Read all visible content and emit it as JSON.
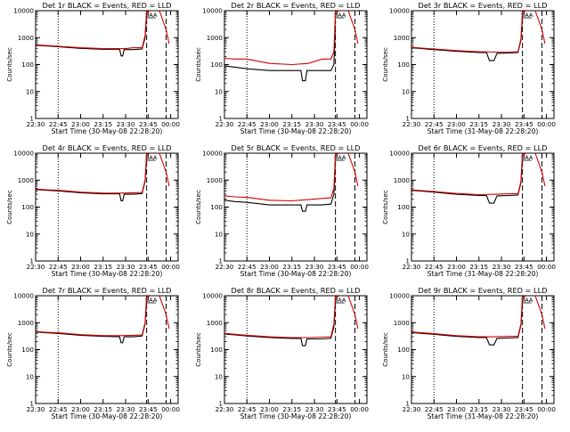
{
  "chart_data": [
    {
      "type": "line",
      "title": "Det 1r BLACK = Events, RED = LLD",
      "xlabel": "Start Time (30-May-08 22:28:20)",
      "ylabel": "Counts/sec",
      "yscale": "log",
      "ylim": [
        1,
        10000
      ],
      "x_ticks": [
        "22:30",
        "22:45",
        "23:00",
        "23:15",
        "23:30",
        "23:45",
        "00:00"
      ],
      "y_ticks": [
        "1",
        "10",
        "100",
        "1000",
        "10000"
      ],
      "markers": [
        {
          "label": "dotted",
          "x": "22:45"
        },
        {
          "label": "dashed",
          "x": "23:44"
        },
        {
          "label": "dashed",
          "x": "23:57"
        },
        {
          "label": "SAA",
          "x": "23:47"
        }
      ],
      "series": [
        {
          "name": "Events",
          "color": "#000000",
          "x": [
            "22:30",
            "22:37",
            "22:45",
            "23:00",
            "23:15",
            "23:26",
            "23:27",
            "23:28",
            "23:29",
            "23:35",
            "23:41",
            "23:43",
            "23:44"
          ],
          "values": [
            520,
            490,
            460,
            400,
            370,
            370,
            210,
            210,
            360,
            360,
            380,
            1000,
            7000
          ]
        },
        {
          "name": "LLD",
          "color": "#d40000",
          "x": [
            "22:30",
            "22:37",
            "22:45",
            "23:00",
            "23:15",
            "23:26",
            "23:30",
            "23:35",
            "23:41",
            "23:43",
            "23:44",
            "23:52",
            "23:57",
            "23:59"
          ],
          "values": [
            540,
            510,
            480,
            420,
            390,
            390,
            390,
            420,
            420,
            1200,
            9000,
            12000,
            2000,
            600
          ]
        }
      ]
    },
    {
      "type": "line",
      "title": "Det 2r BLACK = Events, RED = LLD",
      "xlabel": "Start Time (30-May-08 22:28:20)",
      "ylabel": "Counts/sec",
      "yscale": "log",
      "ylim": [
        1,
        10000
      ],
      "x_ticks": [
        "22:30",
        "22:45",
        "23:00",
        "23:15",
        "23:30",
        "23:45",
        "00:00"
      ],
      "y_ticks": [
        "1",
        "10",
        "100",
        "1000",
        "10000"
      ],
      "markers": [
        {
          "label": "dotted",
          "x": "22:45"
        },
        {
          "label": "dashed",
          "x": "23:44"
        },
        {
          "label": "dashed",
          "x": "23:57"
        },
        {
          "label": "SAA",
          "x": "23:47"
        }
      ],
      "series": [
        {
          "name": "Events",
          "color": "#000000",
          "x": [
            "22:30",
            "22:37",
            "22:45",
            "23:00",
            "23:15",
            "23:21",
            "23:22",
            "23:24",
            "23:25",
            "23:35",
            "23:41",
            "23:43",
            "23:44"
          ],
          "values": [
            90,
            80,
            70,
            60,
            60,
            60,
            25,
            25,
            60,
            60,
            60,
            100,
            3000
          ]
        },
        {
          "name": "LLD",
          "color": "#d40000",
          "x": [
            "22:30",
            "22:37",
            "22:45",
            "23:00",
            "23:15",
            "23:26",
            "23:35",
            "23:41",
            "23:43",
            "23:44",
            "23:52",
            "23:57",
            "23:59"
          ],
          "values": [
            170,
            160,
            160,
            110,
            100,
            110,
            160,
            160,
            300,
            9000,
            12000,
            2000,
            600
          ]
        }
      ]
    },
    {
      "type": "line",
      "title": "Det 3r BLACK = Events, RED = LLD",
      "xlabel": "Start Time (31-May-08 22:28:20)",
      "ylabel": "Counts/sec",
      "yscale": "log",
      "ylim": [
        1,
        10000
      ],
      "x_ticks": [
        "22:30",
        "22:45",
        "23:00",
        "23:15",
        "23:30",
        "23:45",
        "00:00"
      ],
      "y_ticks": [
        "1",
        "10",
        "100",
        "1000",
        "10000"
      ],
      "markers": [
        {
          "label": "dotted",
          "x": "22:45"
        },
        {
          "label": "dashed",
          "x": "23:44"
        },
        {
          "label": "dashed",
          "x": "23:57"
        },
        {
          "label": "SAA",
          "x": "23:47"
        }
      ],
      "series": [
        {
          "name": "Events",
          "color": "#000000",
          "x": [
            "22:30",
            "22:37",
            "22:45",
            "23:00",
            "23:15",
            "23:20",
            "23:22",
            "23:25",
            "23:27",
            "23:35",
            "23:41",
            "23:43",
            "23:44"
          ],
          "values": [
            420,
            390,
            360,
            310,
            280,
            280,
            140,
            140,
            260,
            270,
            280,
            800,
            6000
          ]
        },
        {
          "name": "LLD",
          "color": "#d40000",
          "x": [
            "22:30",
            "22:37",
            "22:45",
            "23:00",
            "23:15",
            "23:26",
            "23:35",
            "23:41",
            "23:43",
            "23:44",
            "23:52",
            "23:57",
            "23:59"
          ],
          "values": [
            440,
            410,
            380,
            330,
            300,
            290,
            290,
            300,
            900,
            9000,
            12000,
            2000,
            600
          ]
        }
      ]
    },
    {
      "type": "line",
      "title": "Det 4r BLACK = Events, RED = LLD",
      "xlabel": "Start Time (30-May-08 22:28:20)",
      "ylabel": "Counts/sec",
      "yscale": "log",
      "ylim": [
        1,
        10000
      ],
      "x_ticks": [
        "22:30",
        "22:45",
        "23:00",
        "23:15",
        "23:30",
        "23:45",
        "00:00"
      ],
      "y_ticks": [
        "1",
        "10",
        "100",
        "1000",
        "10000"
      ],
      "markers": [
        {
          "label": "dotted",
          "x": "22:45"
        },
        {
          "label": "dashed",
          "x": "23:44"
        },
        {
          "label": "dashed",
          "x": "23:57"
        },
        {
          "label": "SAA",
          "x": "23:47"
        }
      ],
      "series": [
        {
          "name": "Events",
          "color": "#000000",
          "x": [
            "22:30",
            "22:37",
            "22:45",
            "23:00",
            "23:15",
            "23:26",
            "23:27",
            "23:28",
            "23:29",
            "23:35",
            "23:41",
            "23:43",
            "23:44"
          ],
          "values": [
            450,
            420,
            400,
            340,
            310,
            310,
            170,
            170,
            300,
            300,
            320,
            900,
            6500
          ]
        },
        {
          "name": "LLD",
          "color": "#d40000",
          "x": [
            "22:30",
            "22:37",
            "22:45",
            "23:00",
            "23:15",
            "23:26",
            "23:35",
            "23:41",
            "23:43",
            "23:44",
            "23:52",
            "23:57",
            "23:59"
          ],
          "values": [
            470,
            440,
            420,
            360,
            330,
            330,
            340,
            350,
            1000,
            9000,
            12000,
            2000,
            600
          ]
        }
      ]
    },
    {
      "type": "line",
      "title": "Det 5r BLACK = Events, RED = LLD",
      "xlabel": "Start Time (30-May-08 22:28:20)",
      "ylabel": "Counts/sec",
      "yscale": "log",
      "ylim": [
        1,
        10000
      ],
      "x_ticks": [
        "22:30",
        "22:45",
        "23:00",
        "23:15",
        "23:30",
        "23:45",
        "00:00"
      ],
      "y_ticks": [
        "1",
        "10",
        "100",
        "1000",
        "10000"
      ],
      "markers": [
        {
          "label": "dotted",
          "x": "22:45"
        },
        {
          "label": "dashed",
          "x": "23:44"
        },
        {
          "label": "dashed",
          "x": "23:57"
        },
        {
          "label": "SAA",
          "x": "23:47"
        }
      ],
      "series": [
        {
          "name": "Events",
          "color": "#000000",
          "x": [
            "22:30",
            "22:37",
            "22:45",
            "23:00",
            "23:15",
            "23:21",
            "23:22",
            "23:24",
            "23:25",
            "23:35",
            "23:41",
            "23:43",
            "23:44"
          ],
          "values": [
            180,
            160,
            150,
            120,
            120,
            120,
            70,
            70,
            120,
            120,
            130,
            300,
            5000
          ]
        },
        {
          "name": "LLD",
          "color": "#d40000",
          "x": [
            "22:30",
            "22:37",
            "22:45",
            "23:00",
            "23:15",
            "23:26",
            "23:35",
            "23:41",
            "23:43",
            "23:44",
            "23:52",
            "23:57",
            "23:59"
          ],
          "values": [
            260,
            240,
            230,
            180,
            170,
            190,
            210,
            220,
            500,
            9000,
            12000,
            2000,
            600
          ]
        }
      ]
    },
    {
      "type": "line",
      "title": "Det 6r BLACK = Events, RED = LLD",
      "xlabel": "Start Time (31-May-08 22:28:20)",
      "ylabel": "Counts/sec",
      "yscale": "log",
      "ylim": [
        1,
        10000
      ],
      "x_ticks": [
        "22:30",
        "22:45",
        "23:00",
        "23:15",
        "23:30",
        "23:45",
        "00:00"
      ],
      "y_ticks": [
        "1",
        "10",
        "100",
        "1000",
        "10000"
      ],
      "markers": [
        {
          "label": "dotted",
          "x": "22:45"
        },
        {
          "label": "dashed",
          "x": "23:44"
        },
        {
          "label": "dashed",
          "x": "23:57"
        },
        {
          "label": "SAA",
          "x": "23:47"
        }
      ],
      "series": [
        {
          "name": "Events",
          "color": "#000000",
          "x": [
            "22:30",
            "22:37",
            "22:45",
            "23:00",
            "23:15",
            "23:20",
            "23:22",
            "23:25",
            "23:27",
            "23:35",
            "23:41",
            "23:43",
            "23:44"
          ],
          "values": [
            420,
            390,
            360,
            300,
            270,
            270,
            140,
            140,
            260,
            270,
            280,
            800,
            6000
          ]
        },
        {
          "name": "LLD",
          "color": "#d40000",
          "x": [
            "22:30",
            "22:37",
            "22:45",
            "23:00",
            "23:15",
            "23:26",
            "23:35",
            "23:41",
            "23:43",
            "23:44",
            "23:52",
            "23:57",
            "23:59"
          ],
          "values": [
            440,
            410,
            380,
            320,
            290,
            300,
            310,
            310,
            900,
            9000,
            12000,
            2000,
            600
          ]
        }
      ]
    },
    {
      "type": "line",
      "title": "Det 7r BLACK = Events, RED = LLD",
      "xlabel": "Start Time (30-May-08 22:28:20)",
      "ylabel": "Counts/sec",
      "yscale": "log",
      "ylim": [
        1,
        10000
      ],
      "x_ticks": [
        "22:30",
        "22:45",
        "23:00",
        "23:15",
        "23:30",
        "23:45",
        "00:00"
      ],
      "y_ticks": [
        "1",
        "10",
        "100",
        "1000",
        "10000"
      ],
      "markers": [
        {
          "label": "dotted",
          "x": "22:45"
        },
        {
          "label": "dashed",
          "x": "23:44"
        },
        {
          "label": "dashed",
          "x": "23:57"
        },
        {
          "label": "SAA",
          "x": "23:47"
        }
      ],
      "series": [
        {
          "name": "Events",
          "color": "#000000",
          "x": [
            "22:30",
            "22:37",
            "22:45",
            "23:00",
            "23:15",
            "23:26",
            "23:27",
            "23:28",
            "23:29",
            "23:35",
            "23:41",
            "23:43",
            "23:44"
          ],
          "values": [
            450,
            420,
            400,
            340,
            310,
            300,
            180,
            180,
            300,
            300,
            320,
            900,
            6500
          ]
        },
        {
          "name": "LLD",
          "color": "#d40000",
          "x": [
            "22:30",
            "22:37",
            "22:45",
            "23:00",
            "23:15",
            "23:26",
            "23:35",
            "23:41",
            "23:43",
            "23:44",
            "23:52",
            "23:57",
            "23:59"
          ],
          "values": [
            470,
            440,
            420,
            360,
            330,
            330,
            340,
            350,
            1000,
            9000,
            12000,
            2000,
            600
          ]
        }
      ]
    },
    {
      "type": "line",
      "title": "Det 8r BLACK = Events, RED = LLD",
      "xlabel": "Start Time (30-May-08 22:28:20)",
      "ylabel": "Counts/sec",
      "yscale": "log",
      "ylim": [
        1,
        10000
      ],
      "x_ticks": [
        "22:30",
        "22:45",
        "23:00",
        "23:15",
        "23:30",
        "23:45",
        "00:00"
      ],
      "y_ticks": [
        "1",
        "10",
        "100",
        "1000",
        "10000"
      ],
      "markers": [
        {
          "label": "dotted",
          "x": "22:45"
        },
        {
          "label": "dashed",
          "x": "23:44"
        },
        {
          "label": "dashed",
          "x": "23:57"
        },
        {
          "label": "SAA",
          "x": "23:47"
        }
      ],
      "series": [
        {
          "name": "Events",
          "color": "#000000",
          "x": [
            "22:30",
            "22:37",
            "22:45",
            "23:00",
            "23:15",
            "23:21",
            "23:22",
            "23:24",
            "23:25",
            "23:35",
            "23:41",
            "23:43",
            "23:44"
          ],
          "values": [
            380,
            350,
            320,
            280,
            260,
            260,
            140,
            140,
            250,
            250,
            260,
            700,
            6000
          ]
        },
        {
          "name": "LLD",
          "color": "#d40000",
          "x": [
            "22:30",
            "22:37",
            "22:45",
            "23:00",
            "23:15",
            "23:26",
            "23:35",
            "23:41",
            "23:43",
            "23:44",
            "23:52",
            "23:57",
            "23:59"
          ],
          "values": [
            400,
            370,
            340,
            300,
            280,
            280,
            290,
            300,
            900,
            9000,
            12000,
            2000,
            600
          ]
        }
      ]
    },
    {
      "type": "line",
      "title": "Det 9r BLACK = Events, RED = LLD",
      "xlabel": "Start Time (31-May-08 22:28:20)",
      "ylabel": "Counts/sec",
      "yscale": "log",
      "ylim": [
        1,
        10000
      ],
      "x_ticks": [
        "22:30",
        "22:45",
        "23:00",
        "23:15",
        "23:30",
        "23:45",
        "00:00"
      ],
      "y_ticks": [
        "1",
        "10",
        "100",
        "1000",
        "10000"
      ],
      "markers": [
        {
          "label": "dotted",
          "x": "22:45"
        },
        {
          "label": "dashed",
          "x": "23:44"
        },
        {
          "label": "dashed",
          "x": "23:57"
        },
        {
          "label": "SAA",
          "x": "23:47"
        }
      ],
      "series": [
        {
          "name": "Events",
          "color": "#000000",
          "x": [
            "22:30",
            "22:37",
            "22:45",
            "23:00",
            "23:15",
            "23:20",
            "23:22",
            "23:25",
            "23:27",
            "23:35",
            "23:41",
            "23:43",
            "23:44"
          ],
          "values": [
            430,
            400,
            370,
            310,
            280,
            280,
            150,
            150,
            260,
            270,
            280,
            800,
            6000
          ]
        },
        {
          "name": "LLD",
          "color": "#d40000",
          "x": [
            "22:30",
            "22:37",
            "22:45",
            "23:00",
            "23:15",
            "23:26",
            "23:35",
            "23:41",
            "23:43",
            "23:44",
            "23:52",
            "23:57",
            "23:59"
          ],
          "values": [
            450,
            420,
            390,
            330,
            300,
            300,
            310,
            310,
            900,
            9000,
            12000,
            2000,
            600
          ]
        }
      ]
    }
  ]
}
